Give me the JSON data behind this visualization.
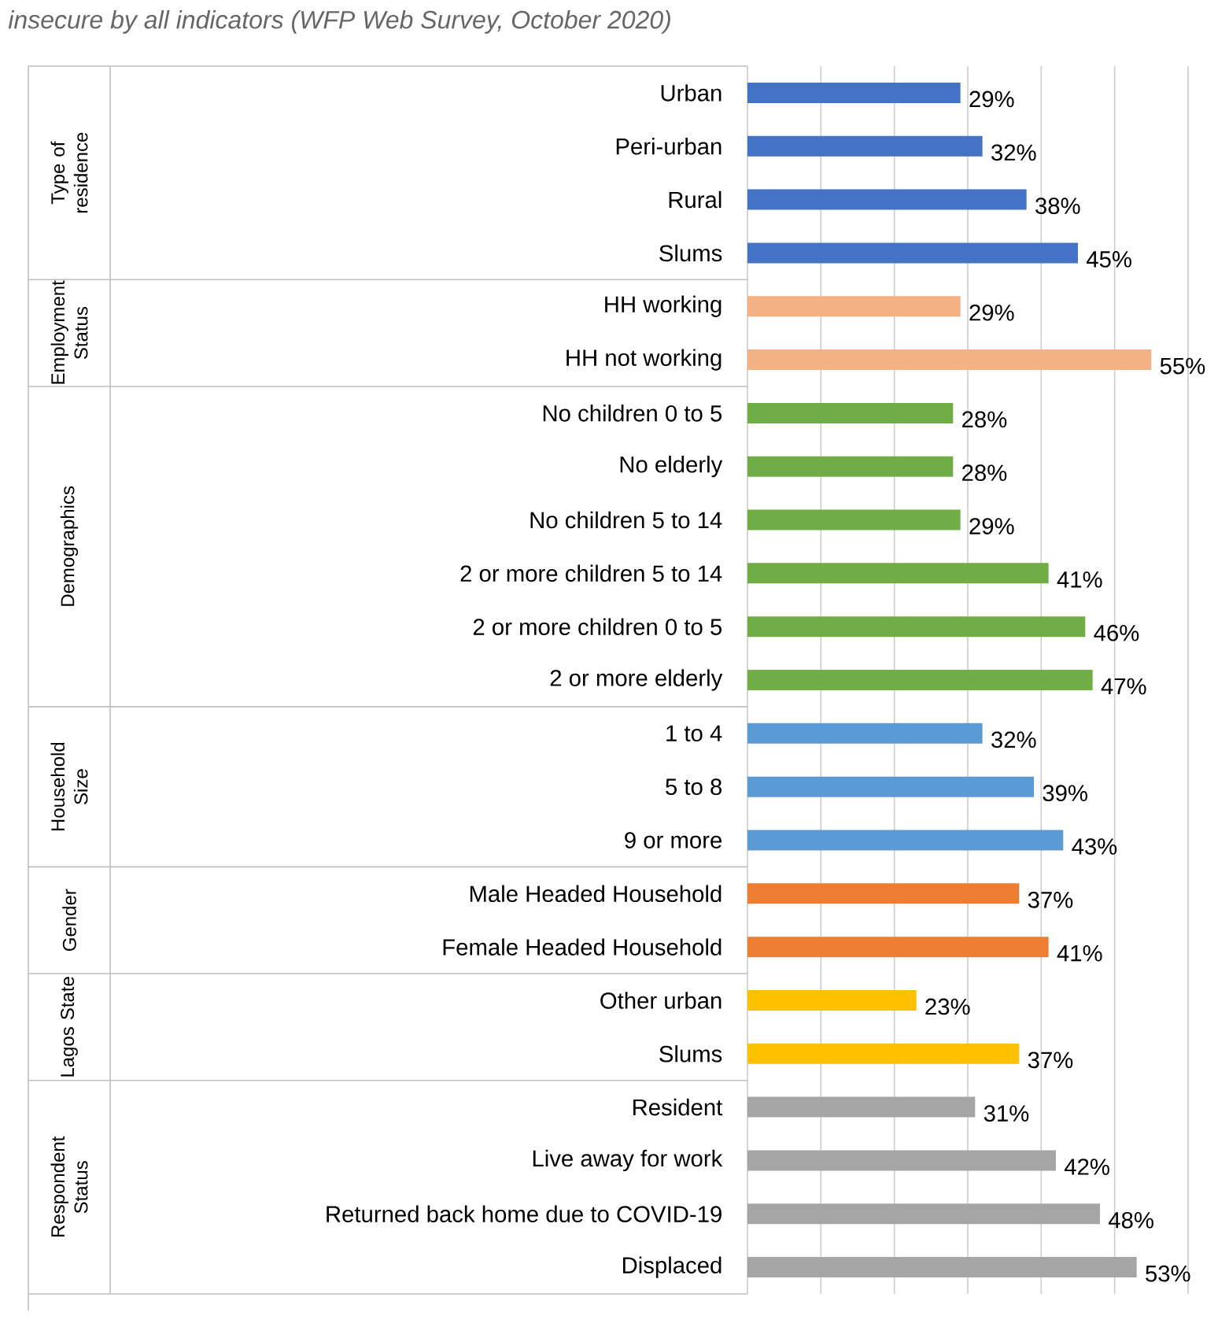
{
  "chart_data": {
    "type": "bar",
    "orientation": "horizontal",
    "title": "insecure by all indicators (WFP Web Survey, October 2020)",
    "categories": [
      "Urban",
      "Peri-urban",
      "Rural",
      "Slums",
      "HH working",
      "HH not working",
      "No children 0 to 5",
      "No elderly",
      "No children 5 to 14",
      "2 or more children 5 to 14",
      "2 or more children 0 to 5",
      "2 or more elderly",
      "1 to 4",
      "5 to 8",
      "9 or more",
      "Male Headed Household",
      "Female Headed Household",
      "Other urban",
      "Slums",
      "Resident",
      "Live away for work",
      "Returned back home due to COVID-19",
      "Displaced"
    ],
    "values": [
      29,
      32,
      38,
      45,
      29,
      55,
      28,
      28,
      29,
      41,
      46,
      47,
      32,
      39,
      43,
      37,
      41,
      23,
      37,
      31,
      42,
      48,
      53
    ],
    "value_labels": [
      "29%",
      "32%",
      "38%",
      "45%",
      "29%",
      "55%",
      "28%",
      "28%",
      "29%",
      "41%",
      "46%",
      "47%",
      "32%",
      "39%",
      "43%",
      "37%",
      "41%",
      "23%",
      "37%",
      "31%",
      "42%",
      "48%",
      "53%"
    ],
    "colors": [
      "#4472c4",
      "#4472c4",
      "#4472c4",
      "#4472c4",
      "#f4b183",
      "#f4b183",
      "#70ad47",
      "#70ad47",
      "#70ad47",
      "#70ad47",
      "#70ad47",
      "#70ad47",
      "#5b9bd5",
      "#5b9bd5",
      "#5b9bd5",
      "#ed7d31",
      "#ed7d31",
      "#ffc000",
      "#ffc000",
      "#a5a5a5",
      "#a5a5a5",
      "#a5a5a5",
      "#a5a5a5"
    ],
    "xlim": [
      0,
      60
    ],
    "xticks": [
      {
        "value": 0,
        "label": null
      },
      {
        "value": 10,
        "label": null
      },
      {
        "value": 20,
        "label": null
      },
      {
        "value": 30,
        "label": null
      },
      {
        "value": 40,
        "label": null
      },
      {
        "value": 50,
        "label": null
      },
      {
        "value": 60,
        "label": null
      }
    ],
    "grid": "x",
    "tick_labels": "y",
    "annotations": [
      "Type of residence",
      "Employment Status",
      "Demographics",
      "Household Size",
      "Gender",
      "Lagos State",
      "Respondent Status"
    ]
  }
}
